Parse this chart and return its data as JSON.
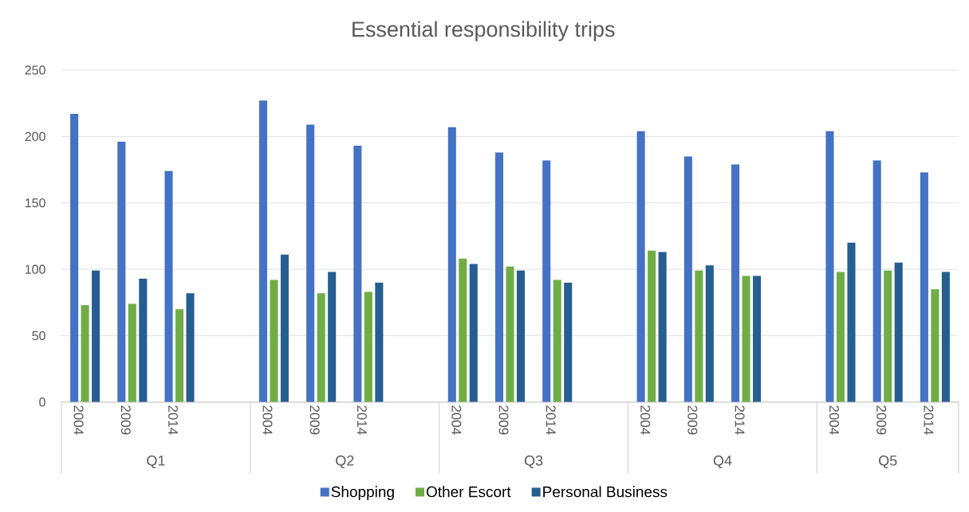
{
  "chart_data": {
    "type": "bar",
    "title": "Essential responsibility trips",
    "categories": [
      "2004",
      "2009",
      "2014",
      null,
      "2004",
      "2009",
      "2014",
      null,
      "2004",
      "2009",
      "2014",
      null,
      "2004",
      "2009",
      "2014",
      null,
      "2004",
      "2009",
      "2014"
    ],
    "annotations": [
      "Q1",
      "Q2",
      "Q3",
      "Q4",
      "Q5"
    ],
    "series": [
      {
        "name": "Shopping",
        "color": "#4472c4",
        "values": [
          217,
          196,
          174,
          null,
          227,
          209,
          193,
          null,
          207,
          188,
          182,
          null,
          204,
          185,
          179,
          null,
          204,
          182,
          173
        ]
      },
      {
        "name": "Other Escort",
        "color": "#70ad47",
        "values": [
          73,
          74,
          70,
          null,
          92,
          82,
          83,
          null,
          108,
          102,
          92,
          null,
          114,
          99,
          95,
          null,
          98,
          99,
          85
        ]
      },
      {
        "name": "Personal Business",
        "color": "#255e91",
        "values": [
          99,
          93,
          82,
          null,
          111,
          98,
          90,
          null,
          104,
          99,
          90,
          null,
          113,
          103,
          95,
          null,
          120,
          105,
          98
        ]
      }
    ],
    "ylim": [
      0,
      250
    ],
    "yticks": [
      0,
      50,
      100,
      150,
      200,
      250
    ],
    "grid": "y",
    "legend": "bottom"
  }
}
